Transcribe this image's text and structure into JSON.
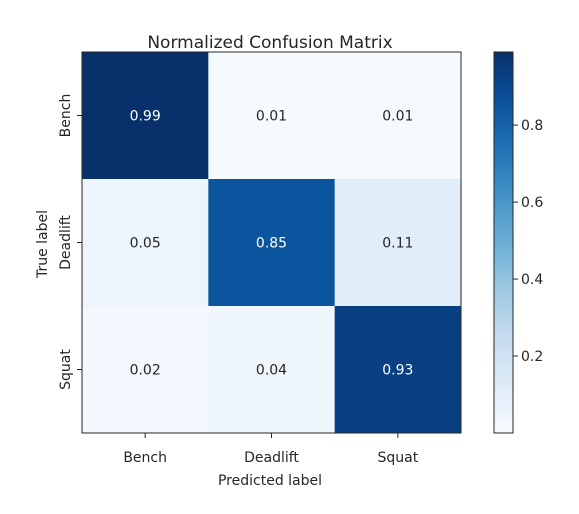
{
  "chart_data": {
    "type": "heatmap",
    "title": "Normalized Confusion Matrix",
    "xlabel": "Predicted label",
    "ylabel": "True label",
    "x_categories": [
      "Bench",
      "Deadlift",
      "Squat"
    ],
    "y_categories": [
      "Bench",
      "Deadlift",
      "Squat"
    ],
    "values": [
      [
        0.99,
        0.01,
        0.01
      ],
      [
        0.05,
        0.85,
        0.11
      ],
      [
        0.02,
        0.04,
        0.93
      ]
    ],
    "cell_labels": [
      [
        "0.99",
        "0.01",
        "0.01"
      ],
      [
        "0.05",
        "0.85",
        "0.11"
      ],
      [
        "0.02",
        "0.04",
        "0.93"
      ]
    ],
    "colormap": "Blues",
    "colormap_range": [
      0.0,
      0.99
    ],
    "colorbar_ticks": [
      0.2,
      0.4,
      0.6,
      0.8
    ],
    "colorbar_tick_labels": [
      "0.2",
      "0.4",
      "0.6",
      "0.8"
    ],
    "colors": {
      "cmap_low": "#f7fbff",
      "cmap_high": "#08306b",
      "text_dark": "#262626",
      "text_light": "#ffffff"
    }
  }
}
